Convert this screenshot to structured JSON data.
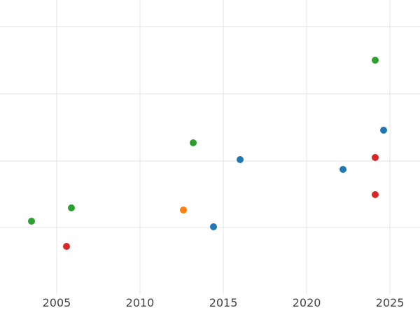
{
  "figure": {
    "background": "#ffffff",
    "grid_color": "#e4e4e4",
    "tick_label_color": "#444444"
  },
  "chart_data": {
    "type": "scatter",
    "title": "",
    "xlabel": "",
    "ylabel": "",
    "grid": true,
    "legend": false,
    "x_axis": {
      "tick_labels": [
        "2005",
        "2010",
        "2015",
        "2020",
        "2025"
      ],
      "tick_values": [
        2005,
        2010,
        2015,
        2020,
        2025
      ],
      "range": [
        2001.6,
        2026.8
      ]
    },
    "y_axis": {
      "tick_labels": [],
      "tick_values": [
        1,
        2,
        3,
        4
      ],
      "range": [
        0,
        4.4
      ],
      "tick_labels_visible": false,
      "note": "y-axis gridline units estimated; no y tick labels visible in image"
    },
    "series": [
      {
        "name": "green-series",
        "color": "#2ca02c",
        "points": [
          [
            2003.5,
            1.1
          ],
          [
            2005.9,
            1.3
          ],
          [
            2013.2,
            2.27
          ],
          [
            2024.1,
            3.5
          ]
        ]
      },
      {
        "name": "red-series",
        "color": "#d62728",
        "points": [
          [
            2005.6,
            0.72
          ],
          [
            2024.1,
            2.05
          ],
          [
            2024.1,
            1.49
          ]
        ]
      },
      {
        "name": "orange-series",
        "color": "#ff7f0e",
        "points": [
          [
            2012.6,
            1.26
          ]
        ]
      },
      {
        "name": "blue-series",
        "color": "#1f77b4",
        "points": [
          [
            2014.4,
            1.01
          ],
          [
            2016.0,
            2.02
          ],
          [
            2022.2,
            1.87
          ],
          [
            2024.6,
            2.46
          ]
        ]
      }
    ]
  }
}
